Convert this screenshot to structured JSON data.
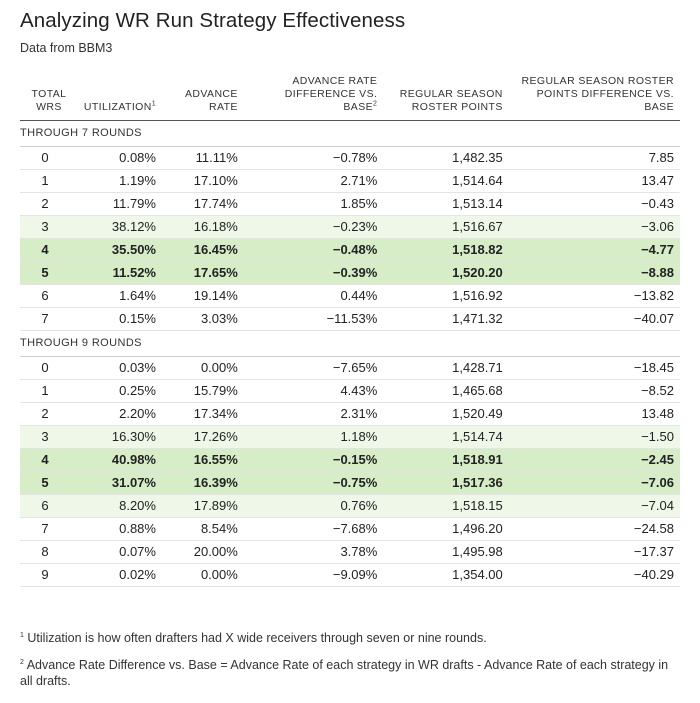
{
  "title": "Analyzing WR Run Strategy Effectiveness",
  "subtitle": "Data from BBM3",
  "headers": {
    "total_wrs": "TOTAL WRS",
    "utilization": "UTILIZATION",
    "utilization_sup": "1",
    "advance_rate": "ADVANCE RATE",
    "advance_rate_diff": "ADVANCE RATE DIFFERENCE VS. BASE",
    "advance_rate_diff_sup": "2",
    "reg_season_points": "REGULAR SEASON ROSTER POINTS",
    "reg_season_points_diff": "REGULAR SEASON ROSTER POINTS DIFFERENCE VS. BASE"
  },
  "sections": [
    {
      "label": "THROUGH 7 ROUNDS",
      "rows": [
        {
          "wrs": "0",
          "util": "0.08%",
          "adv": "11.11%",
          "adv_diff": "−0.78%",
          "pts": "1,482.35",
          "pts_diff": "7.85",
          "hl": ""
        },
        {
          "wrs": "1",
          "util": "1.19%",
          "adv": "17.10%",
          "adv_diff": "2.71%",
          "pts": "1,514.64",
          "pts_diff": "13.47",
          "hl": ""
        },
        {
          "wrs": "2",
          "util": "11.79%",
          "adv": "17.74%",
          "adv_diff": "1.85%",
          "pts": "1,513.14",
          "pts_diff": "−0.43",
          "hl": ""
        },
        {
          "wrs": "3",
          "util": "38.12%",
          "adv": "16.18%",
          "adv_diff": "−0.23%",
          "pts": "1,516.67",
          "pts_diff": "−3.06",
          "hl": "hl-light"
        },
        {
          "wrs": "4",
          "util": "35.50%",
          "adv": "16.45%",
          "adv_diff": "−0.48%",
          "pts": "1,518.82",
          "pts_diff": "−4.77",
          "hl": "hl"
        },
        {
          "wrs": "5",
          "util": "11.52%",
          "adv": "17.65%",
          "adv_diff": "−0.39%",
          "pts": "1,520.20",
          "pts_diff": "−8.88",
          "hl": "hl"
        },
        {
          "wrs": "6",
          "util": "1.64%",
          "adv": "19.14%",
          "adv_diff": "0.44%",
          "pts": "1,516.92",
          "pts_diff": "−13.82",
          "hl": ""
        },
        {
          "wrs": "7",
          "util": "0.15%",
          "adv": "3.03%",
          "adv_diff": "−11.53%",
          "pts": "1,471.32",
          "pts_diff": "−40.07",
          "hl": ""
        }
      ]
    },
    {
      "label": "THROUGH 9 ROUNDS",
      "rows": [
        {
          "wrs": "0",
          "util": "0.03%",
          "adv": "0.00%",
          "adv_diff": "−7.65%",
          "pts": "1,428.71",
          "pts_diff": "−18.45",
          "hl": ""
        },
        {
          "wrs": "1",
          "util": "0.25%",
          "adv": "15.79%",
          "adv_diff": "4.43%",
          "pts": "1,465.68",
          "pts_diff": "−8.52",
          "hl": ""
        },
        {
          "wrs": "2",
          "util": "2.20%",
          "adv": "17.34%",
          "adv_diff": "2.31%",
          "pts": "1,520.49",
          "pts_diff": "13.48",
          "hl": ""
        },
        {
          "wrs": "3",
          "util": "16.30%",
          "adv": "17.26%",
          "adv_diff": "1.18%",
          "pts": "1,514.74",
          "pts_diff": "−1.50",
          "hl": "hl-light"
        },
        {
          "wrs": "4",
          "util": "40.98%",
          "adv": "16.55%",
          "adv_diff": "−0.15%",
          "pts": "1,518.91",
          "pts_diff": "−2.45",
          "hl": "hl"
        },
        {
          "wrs": "5",
          "util": "31.07%",
          "adv": "16.39%",
          "adv_diff": "−0.75%",
          "pts": "1,517.36",
          "pts_diff": "−7.06",
          "hl": "hl"
        },
        {
          "wrs": "6",
          "util": "8.20%",
          "adv": "17.89%",
          "adv_diff": "0.76%",
          "pts": "1,518.15",
          "pts_diff": "−7.04",
          "hl": "hl-light"
        },
        {
          "wrs": "7",
          "util": "0.88%",
          "adv": "8.54%",
          "adv_diff": "−7.68%",
          "pts": "1,496.20",
          "pts_diff": "−24.58",
          "hl": ""
        },
        {
          "wrs": "8",
          "util": "0.07%",
          "adv": "20.00%",
          "adv_diff": "3.78%",
          "pts": "1,495.98",
          "pts_diff": "−17.37",
          "hl": ""
        },
        {
          "wrs": "9",
          "util": "0.02%",
          "adv": "0.00%",
          "adv_diff": "−9.09%",
          "pts": "1,354.00",
          "pts_diff": "−40.29",
          "hl": ""
        }
      ]
    }
  ],
  "footnotes": [
    {
      "sup": "1",
      "text": "Utilization is how often drafters had X wide receivers through seven or nine rounds."
    },
    {
      "sup": "2",
      "text": "Advance Rate Difference vs. Base = Advance Rate of each strategy in WR drafts - Advance Rate of each strategy in all drafts."
    }
  ],
  "colors": {
    "highlight": "#d6edc8",
    "highlight_light": "#eef7e8"
  }
}
